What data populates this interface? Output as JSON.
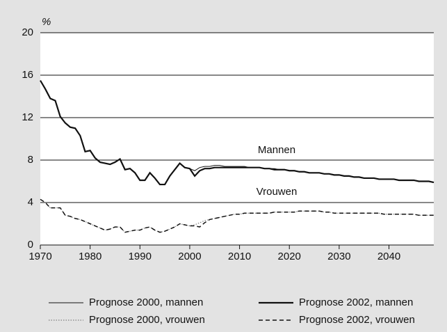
{
  "chart_data": {
    "type": "line",
    "y_unit": "%",
    "x": [
      1970,
      1971,
      1972,
      1973,
      1974,
      1975,
      1976,
      1977,
      1978,
      1979,
      1980,
      1981,
      1982,
      1983,
      1984,
      1985,
      1986,
      1987,
      1988,
      1989,
      1990,
      1991,
      1992,
      1993,
      1994,
      1995,
      1996,
      1997,
      1998,
      1999,
      2000,
      2001,
      2002,
      2003,
      2004,
      2005,
      2006,
      2007,
      2008,
      2009,
      2010,
      2011,
      2012,
      2013,
      2014,
      2015,
      2016,
      2017,
      2018,
      2019,
      2020,
      2021,
      2022,
      2023,
      2024,
      2025,
      2026,
      2027,
      2028,
      2029,
      2030,
      2031,
      2032,
      2033,
      2034,
      2035,
      2036,
      2037,
      2038,
      2039,
      2040,
      2041,
      2042,
      2043,
      2044,
      2045,
      2046,
      2047,
      2048,
      2049
    ],
    "series": [
      {
        "name": "Prognose 2000, mannen",
        "color": "#111111",
        "width": 1,
        "dash": "none",
        "values": [
          15.5,
          14.7,
          13.8,
          13.6,
          12.1,
          11.5,
          11.1,
          11.0,
          10.3,
          8.8,
          8.9,
          8.2,
          7.8,
          7.7,
          7.6,
          7.8,
          8.1,
          7.1,
          7.2,
          6.8,
          6.1,
          6.1,
          6.8,
          6.3,
          5.7,
          5.7,
          6.5,
          7.1,
          7.7,
          7.3,
          7.2,
          7.0,
          7.3,
          7.4,
          7.4,
          7.5,
          7.5,
          7.4,
          7.4,
          7.4,
          7.4,
          7.4,
          7.3,
          7.3,
          7.3,
          7.2,
          7.2,
          7.2,
          7.1,
          7.1,
          7.0,
          7.0,
          6.9,
          6.9,
          6.8,
          6.8,
          6.8,
          6.7,
          6.7,
          6.6,
          6.6,
          6.5,
          6.5,
          6.4,
          6.4,
          6.3,
          6.3,
          6.3,
          6.2,
          6.2,
          6.2,
          6.2,
          6.1,
          6.1,
          6.1,
          6.1,
          6.0,
          6.0,
          6.0,
          5.9
        ]
      },
      {
        "name": "Prognose 2002, mannen",
        "color": "#111111",
        "width": 2.2,
        "dash": "none",
        "values": [
          15.5,
          14.7,
          13.8,
          13.6,
          12.1,
          11.5,
          11.1,
          11.0,
          10.3,
          8.8,
          8.9,
          8.2,
          7.8,
          7.7,
          7.6,
          7.8,
          8.1,
          7.1,
          7.2,
          6.8,
          6.1,
          6.1,
          6.8,
          6.3,
          5.7,
          5.7,
          6.5,
          7.1,
          7.7,
          7.3,
          7.2,
          6.5,
          7.0,
          7.2,
          7.2,
          7.3,
          7.3,
          7.3,
          7.3,
          7.3,
          7.3,
          7.3,
          7.3,
          7.3,
          7.3,
          7.2,
          7.2,
          7.1,
          7.1,
          7.1,
          7.0,
          7.0,
          6.9,
          6.9,
          6.8,
          6.8,
          6.8,
          6.7,
          6.7,
          6.6,
          6.6,
          6.5,
          6.5,
          6.4,
          6.4,
          6.3,
          6.3,
          6.3,
          6.2,
          6.2,
          6.2,
          6.2,
          6.1,
          6.1,
          6.1,
          6.1,
          6.0,
          6.0,
          6.0,
          5.9
        ]
      },
      {
        "name": "Prognose 2000, vrouwen",
        "color": "#666666",
        "width": 1,
        "dash": "1.5 2",
        "values": [
          4.3,
          4.0,
          3.5,
          3.5,
          3.5,
          2.8,
          2.7,
          2.5,
          2.4,
          2.2,
          2.0,
          1.8,
          1.6,
          1.4,
          1.5,
          1.7,
          1.7,
          1.2,
          1.3,
          1.4,
          1.4,
          1.6,
          1.7,
          1.4,
          1.2,
          1.3,
          1.5,
          1.7,
          2.0,
          1.9,
          1.8,
          1.9,
          2.1,
          2.3,
          2.4,
          2.5,
          2.6,
          2.7,
          2.8,
          2.9,
          2.9,
          3.0,
          3.0,
          3.0,
          3.0,
          3.0,
          3.0,
          3.1,
          3.1,
          3.1,
          3.1,
          3.1,
          3.2,
          3.2,
          3.2,
          3.2,
          3.2,
          3.1,
          3.1,
          3.0,
          3.0,
          3.0,
          3.0,
          3.0,
          3.0,
          3.0,
          3.0,
          3.0,
          3.0,
          2.9,
          2.9,
          2.9,
          2.9,
          2.9,
          2.9,
          2.9,
          2.8,
          2.8,
          2.8,
          2.8
        ]
      },
      {
        "name": "Prognose 2002, vrouwen",
        "color": "#111111",
        "width": 1.5,
        "dash": "6 4",
        "values": [
          4.3,
          4.0,
          3.5,
          3.5,
          3.5,
          2.8,
          2.7,
          2.5,
          2.4,
          2.2,
          2.0,
          1.8,
          1.6,
          1.4,
          1.5,
          1.7,
          1.7,
          1.2,
          1.3,
          1.4,
          1.4,
          1.6,
          1.7,
          1.4,
          1.2,
          1.3,
          1.5,
          1.7,
          2.0,
          1.9,
          1.8,
          1.8,
          1.7,
          2.1,
          2.4,
          2.5,
          2.6,
          2.7,
          2.8,
          2.9,
          2.9,
          3.0,
          3.0,
          3.0,
          3.0,
          3.0,
          3.0,
          3.1,
          3.1,
          3.1,
          3.1,
          3.1,
          3.2,
          3.2,
          3.2,
          3.2,
          3.2,
          3.1,
          3.1,
          3.0,
          3.0,
          3.0,
          3.0,
          3.0,
          3.0,
          3.0,
          3.0,
          3.0,
          3.0,
          2.9,
          2.9,
          2.9,
          2.9,
          2.9,
          2.9,
          2.9,
          2.8,
          2.8,
          2.8,
          2.8
        ]
      }
    ],
    "annotations": [
      "Mannen",
      "Vrouwen"
    ],
    "xlim": [
      1970,
      2049
    ],
    "xticks": [
      1970,
      1980,
      1990,
      2000,
      2010,
      2020,
      2030,
      2040
    ],
    "ylim": [
      0,
      20
    ],
    "yticks": [
      0,
      4,
      8,
      12,
      16,
      20
    ],
    "grid": true,
    "legend": "bottom"
  }
}
